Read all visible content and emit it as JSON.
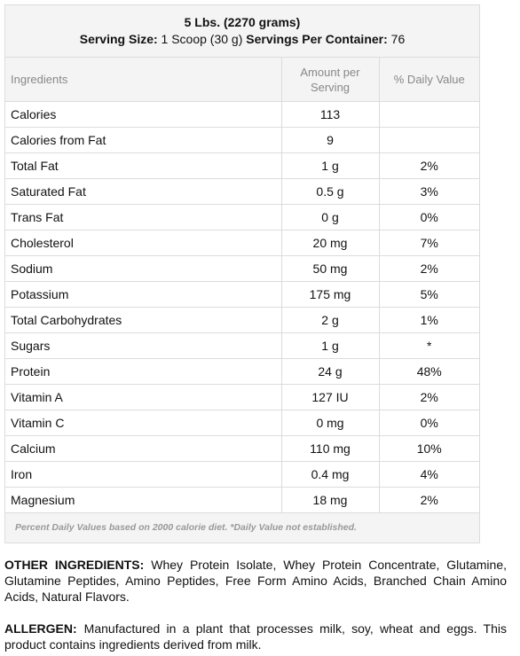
{
  "header": {
    "weight": "5 Lbs. (2270 grams)",
    "serving_size_label": "Serving Size:",
    "serving_size_value": "1 Scoop (30 g)",
    "servings_label": "Servings Per Container:",
    "servings_value": "76"
  },
  "table": {
    "columns": [
      "Ingredients",
      "Amount per\nServing",
      "% Daily Value"
    ],
    "rows": [
      [
        "Calories",
        "113",
        ""
      ],
      [
        "Calories from Fat",
        "9",
        ""
      ],
      [
        "Total Fat",
        "1 g",
        "2%"
      ],
      [
        "Saturated Fat",
        "0.5 g",
        "3%"
      ],
      [
        "Trans Fat",
        "0 g",
        "0%"
      ],
      [
        "Cholesterol",
        "20 mg",
        "7%"
      ],
      [
        "Sodium",
        "50 mg",
        "2%"
      ],
      [
        "Potassium",
        "175 mg",
        "5%"
      ],
      [
        "Total Carbohydrates",
        "2 g",
        "1%"
      ],
      [
        "Sugars",
        "1 g",
        "*"
      ],
      [
        "Protein",
        "24 g",
        "48%"
      ],
      [
        "Vitamin A",
        "127 IU",
        "2%"
      ],
      [
        "Vitamin C",
        "0 mg",
        "0%"
      ],
      [
        "Calcium",
        "110 mg",
        "10%"
      ],
      [
        "Iron",
        "0.4 mg",
        "4%"
      ],
      [
        "Magnesium",
        "18 mg",
        "2%"
      ]
    ],
    "footnote": "Percent Daily Values based on 2000 calorie diet. *Daily Value not established."
  },
  "other_ingredients": {
    "label": "OTHER INGREDIENTS:",
    "text": "Whey Protein Isolate, Whey Protein Concentrate, Glutamine, Glutamine Peptides, Amino Peptides, Free Form Amino Acids, Branched Chain Amino Acids, Natural Flavors."
  },
  "allergen": {
    "label": "ALLERGEN:",
    "text": "Manufactured in a plant that processes milk, soy, wheat and eggs.  This product contains ingredients derived from milk."
  }
}
